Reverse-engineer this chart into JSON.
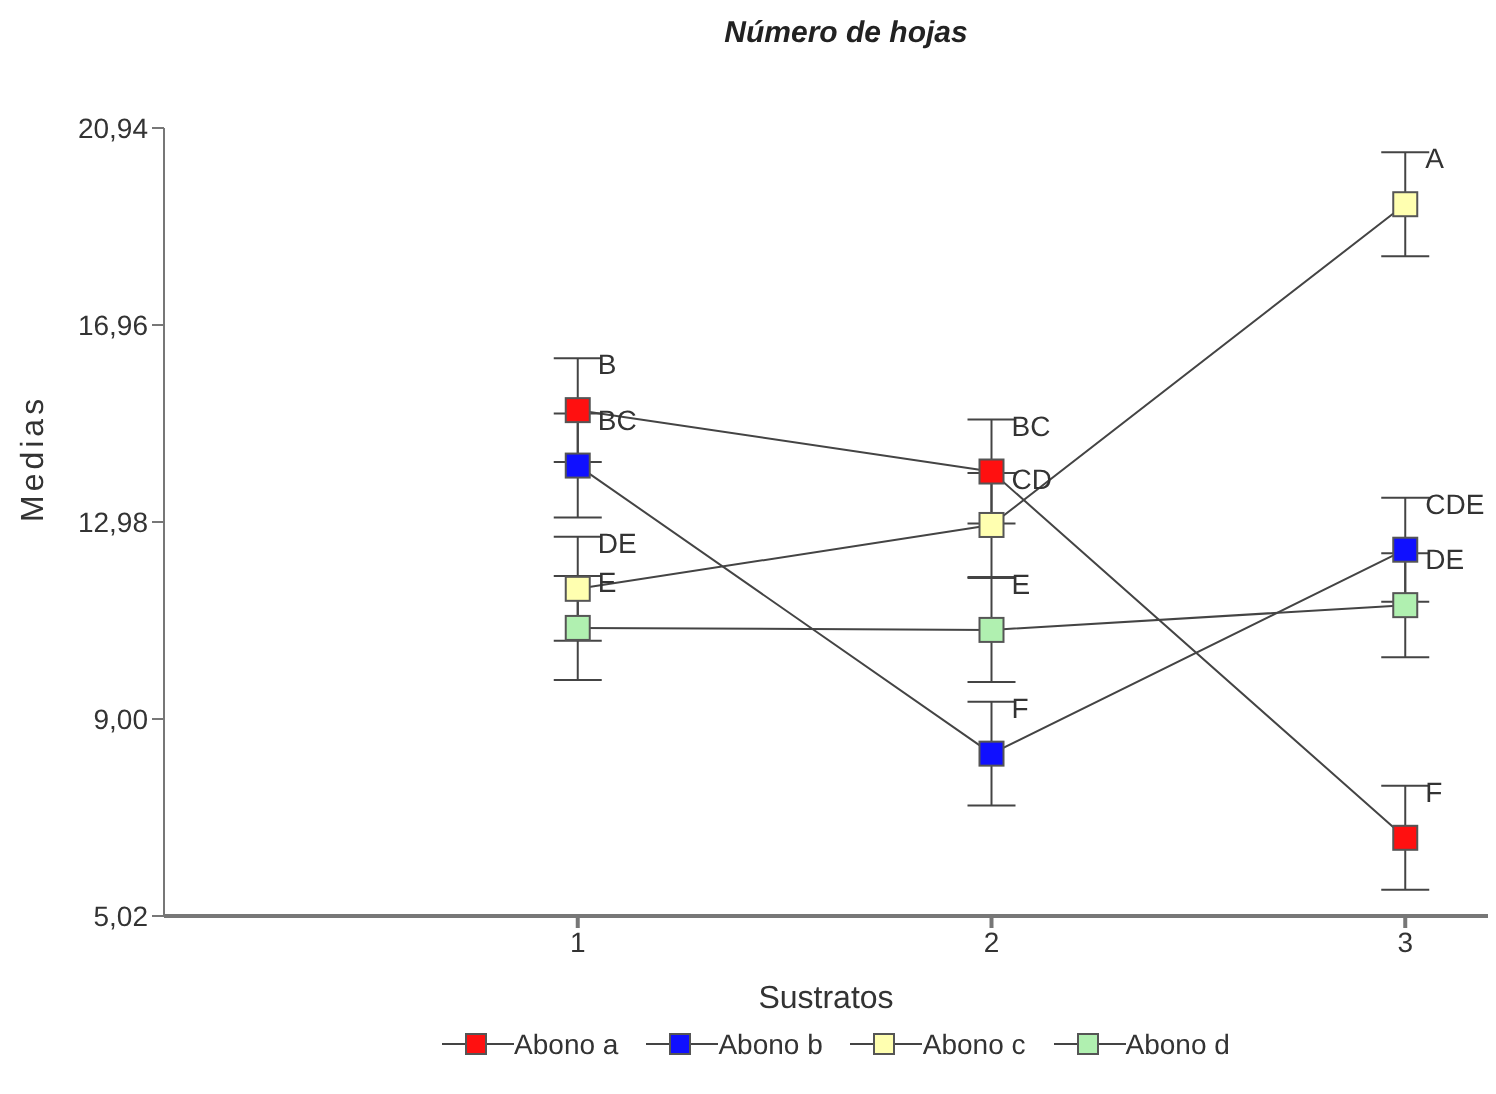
{
  "chart_data": {
    "type": "line",
    "title": "Número de hojas",
    "xlabel": "Sustratos",
    "ylabel": "Medias",
    "x": [
      1,
      2,
      3
    ],
    "series": [
      {
        "name": "Abono a",
        "color": "#ff1010",
        "values": [
          15.24,
          14.0,
          6.6
        ],
        "errors": [
          1.05,
          1.05,
          1.05
        ]
      },
      {
        "name": "Abono b",
        "color": "#1010ff",
        "values": [
          14.12,
          8.3,
          12.42
        ],
        "errors": [
          1.05,
          1.05,
          1.05
        ]
      },
      {
        "name": "Abono c",
        "color": "#ffffb0",
        "values": [
          11.63,
          12.92,
          19.4
        ],
        "errors": [
          1.05,
          1.05,
          1.05
        ]
      },
      {
        "name": "Abono d",
        "color": "#b0f0b0",
        "values": [
          10.84,
          10.8,
          11.3
        ],
        "errors": [
          1.05,
          1.05,
          1.05
        ]
      }
    ],
    "xlim": [
      0,
      3.2
    ],
    "xticks": [
      1,
      2,
      3
    ],
    "ylim": [
      5.02,
      20.94
    ],
    "yticks": [
      {
        "value": 5.02,
        "label": "5,02"
      },
      {
        "value": 9.0,
        "label": "9,00"
      },
      {
        "value": 12.98,
        "label": "12,98"
      },
      {
        "value": 16.96,
        "label": "16,96"
      },
      {
        "value": 20.94,
        "label": "20,94"
      }
    ],
    "annotations": [
      {
        "text": "B",
        "x": 1,
        "y": 16.29
      },
      {
        "text": "BC",
        "x": 1,
        "y": 15.17
      },
      {
        "text": "DE",
        "x": 1,
        "y": 12.68
      },
      {
        "text": "E",
        "x": 1,
        "y": 11.89
      },
      {
        "text": "BC",
        "x": 2,
        "y": 15.05
      },
      {
        "text": "CD",
        "x": 2,
        "y": 13.97
      },
      {
        "text": "E",
        "x": 2,
        "y": 11.85
      },
      {
        "text": "F",
        "x": 2,
        "y": 9.35
      },
      {
        "text": "A",
        "x": 3,
        "y": 20.45
      },
      {
        "text": "CDE",
        "x": 3,
        "y": 13.47
      },
      {
        "text": "DE",
        "x": 3,
        "y": 12.35
      },
      {
        "text": "F",
        "x": 3,
        "y": 7.65
      }
    ],
    "grid": false,
    "legend": "bottom",
    "marker": "square",
    "line_style": "solid"
  }
}
